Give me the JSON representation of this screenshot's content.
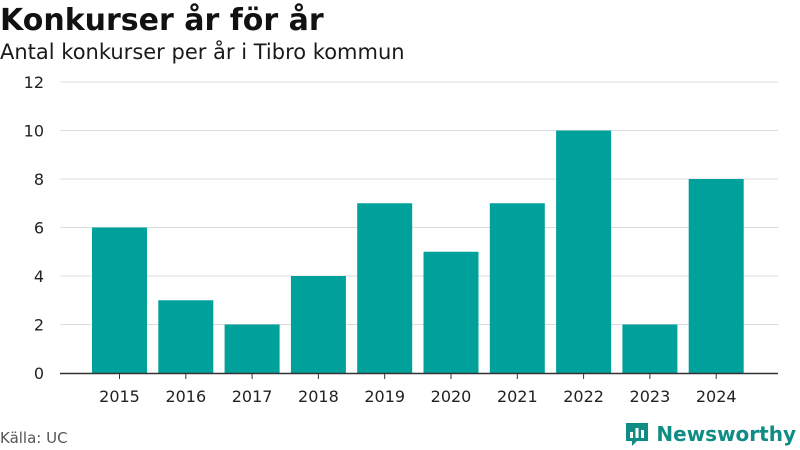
{
  "header": {
    "title": "Konkurser år för år",
    "subtitle": "Antal konkurser per år i Tibro kommun"
  },
  "footer": {
    "source": "Källa: UC",
    "brand": "Newsworthy",
    "brand_icon": "newsworthy-logo-icon"
  },
  "chart_data": {
    "type": "bar",
    "categories": [
      "2015",
      "2016",
      "2017",
      "2018",
      "2019",
      "2020",
      "2021",
      "2022",
      "2023",
      "2024"
    ],
    "values": [
      6,
      3,
      2,
      4,
      7,
      5,
      7,
      10,
      2,
      8
    ],
    "ylim": [
      0,
      12
    ],
    "yticks": [
      0,
      2,
      4,
      6,
      8,
      10,
      12
    ],
    "grid": true,
    "bar_color": "#00a19a",
    "brand_color": "#0f8c84"
  }
}
